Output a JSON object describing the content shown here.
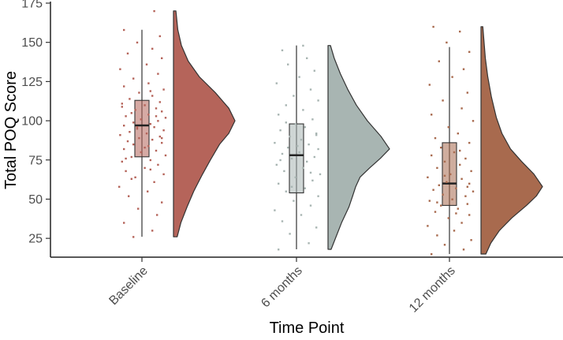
{
  "chart_data": {
    "type": "raincloud",
    "xlabel": "Time Point",
    "ylabel": "Total POQ Score",
    "ylim": [
      13,
      176
    ],
    "yticks": [
      "25",
      "50",
      "75",
      "100",
      "125",
      "150",
      "175"
    ],
    "categories": [
      "Baseline",
      "6 months",
      "12 months"
    ],
    "grid": false,
    "legend": "none",
    "groups": [
      {
        "name": "Baseline",
        "color": "#b5645a",
        "box": {
          "min": 26,
          "q1": 77,
          "median": 97,
          "q3": 113,
          "max": 158
        },
        "density_range": [
          26,
          170
        ],
        "density_peak": 100,
        "density": [
          [
            26,
            0.06
          ],
          [
            35,
            0.12
          ],
          [
            45,
            0.22
          ],
          [
            55,
            0.33
          ],
          [
            65,
            0.46
          ],
          [
            75,
            0.6
          ],
          [
            85,
            0.75
          ],
          [
            92,
            0.9
          ],
          [
            100,
            1.0
          ],
          [
            108,
            0.9
          ],
          [
            118,
            0.68
          ],
          [
            128,
            0.42
          ],
          [
            138,
            0.24
          ],
          [
            148,
            0.13
          ],
          [
            158,
            0.07
          ],
          [
            170,
            0.04
          ]
        ],
        "points": [
          [
            -0.1,
            26
          ],
          [
            0.1,
            30
          ],
          [
            -0.2,
            35
          ],
          [
            0.15,
            40
          ],
          [
            -0.05,
            44
          ],
          [
            0.2,
            48
          ],
          [
            -0.15,
            52
          ],
          [
            0.05,
            55
          ],
          [
            -0.25,
            58
          ],
          [
            0.12,
            61
          ],
          [
            -0.08,
            64
          ],
          [
            0.22,
            66
          ],
          [
            -0.18,
            68
          ],
          [
            0.02,
            70
          ],
          [
            0.16,
            72
          ],
          [
            -0.22,
            74
          ],
          [
            0.08,
            75
          ],
          [
            -0.12,
            77
          ],
          [
            0.24,
            78
          ],
          [
            -0.02,
            80
          ],
          [
            0.14,
            81
          ],
          [
            -0.2,
            82
          ],
          [
            0.06,
            84
          ],
          [
            -0.1,
            85
          ],
          [
            0.2,
            86
          ],
          [
            -0.16,
            87
          ],
          [
            0.1,
            88
          ],
          [
            -0.04,
            89
          ],
          [
            0.18,
            90
          ],
          [
            -0.24,
            91
          ],
          [
            0.04,
            92
          ],
          [
            -0.14,
            93
          ],
          [
            0.22,
            94
          ],
          [
            -0.06,
            95
          ],
          [
            0.12,
            96
          ],
          [
            -0.2,
            97
          ],
          [
            0.08,
            98
          ],
          [
            -0.1,
            99
          ],
          [
            0.16,
            100
          ],
          [
            -0.02,
            101
          ],
          [
            0.24,
            102
          ],
          [
            -0.18,
            103
          ],
          [
            0.06,
            104
          ],
          [
            -0.12,
            105
          ],
          [
            0.2,
            106
          ],
          [
            -0.08,
            107
          ],
          [
            0.14,
            108
          ],
          [
            -0.22,
            109
          ],
          [
            0.02,
            110
          ],
          [
            0.18,
            112
          ],
          [
            -0.14,
            114
          ],
          [
            0.1,
            116
          ],
          [
            -0.04,
            118
          ],
          [
            0.22,
            120
          ],
          [
            -0.2,
            122
          ],
          [
            0.06,
            124
          ],
          [
            -0.1,
            127
          ],
          [
            0.16,
            130
          ],
          [
            -0.24,
            133
          ],
          [
            0.04,
            136
          ],
          [
            0.2,
            140
          ],
          [
            -0.16,
            143
          ],
          [
            0.1,
            146
          ],
          [
            -0.06,
            150
          ],
          [
            0.18,
            154
          ],
          [
            -0.2,
            158
          ],
          [
            0.12,
            170
          ],
          [
            -0.12,
            63
          ],
          [
            0.08,
            69
          ],
          [
            -0.18,
            76
          ],
          [
            0.02,
            83
          ],
          [
            0.2,
            89
          ],
          [
            -0.06,
            96
          ],
          [
            0.14,
            103
          ],
          [
            -0.22,
            111
          ],
          [
            0.08,
            119
          ]
        ]
      },
      {
        "name": "6 months",
        "color": "#a8b5b2",
        "box": {
          "min": 18,
          "q1": 54,
          "median": 78,
          "q3": 98,
          "max": 148
        },
        "density_range": [
          18,
          148
        ],
        "density_peak": 82,
        "density": [
          [
            18,
            0.05
          ],
          [
            25,
            0.12
          ],
          [
            35,
            0.22
          ],
          [
            45,
            0.34
          ],
          [
            52,
            0.4
          ],
          [
            58,
            0.45
          ],
          [
            64,
            0.52
          ],
          [
            70,
            0.68
          ],
          [
            76,
            0.85
          ],
          [
            82,
            1.0
          ],
          [
            90,
            0.86
          ],
          [
            100,
            0.64
          ],
          [
            110,
            0.46
          ],
          [
            120,
            0.32
          ],
          [
            130,
            0.2
          ],
          [
            140,
            0.1
          ],
          [
            148,
            0.04
          ]
        ],
        "points": [
          [
            -0.2,
            18
          ],
          [
            0.12,
            22
          ],
          [
            -0.08,
            28
          ],
          [
            0.2,
            32
          ],
          [
            -0.16,
            36
          ],
          [
            0.04,
            40
          ],
          [
            -0.24,
            43
          ],
          [
            0.14,
            46
          ],
          [
            -0.04,
            49
          ],
          [
            0.22,
            52
          ],
          [
            -0.12,
            55
          ],
          [
            0.08,
            57
          ],
          [
            -0.2,
            60
          ],
          [
            0.16,
            62
          ],
          [
            -0.02,
            64
          ],
          [
            0.24,
            66
          ],
          [
            -0.14,
            68
          ],
          [
            0.06,
            70
          ],
          [
            -0.22,
            72
          ],
          [
            0.1,
            74
          ],
          [
            -0.06,
            76
          ],
          [
            0.18,
            77
          ],
          [
            -0.16,
            79
          ],
          [
            0.02,
            80
          ],
          [
            0.22,
            82
          ],
          [
            -0.1,
            83
          ],
          [
            0.12,
            85
          ],
          [
            -0.24,
            86
          ],
          [
            0.04,
            88
          ],
          [
            -0.08,
            90
          ],
          [
            0.2,
            92
          ],
          [
            -0.18,
            94
          ],
          [
            0.08,
            96
          ],
          [
            -0.02,
            98
          ],
          [
            0.16,
            101
          ],
          [
            -0.2,
            104
          ],
          [
            0.06,
            107
          ],
          [
            -0.12,
            110
          ],
          [
            0.22,
            113
          ],
          [
            -0.04,
            116
          ],
          [
            0.14,
            120
          ],
          [
            -0.22,
            124
          ],
          [
            0.02,
            128
          ],
          [
            0.18,
            132
          ],
          [
            -0.1,
            136
          ],
          [
            0.1,
            140
          ],
          [
            -0.16,
            145
          ],
          [
            0.06,
            148
          ],
          [
            -0.06,
            58
          ],
          [
            0.14,
            67
          ],
          [
            -0.18,
            75
          ],
          [
            0.0,
            84
          ],
          [
            0.2,
            91
          ],
          [
            -0.12,
            99
          ]
        ]
      },
      {
        "name": "12 months",
        "color": "#a86a4e",
        "box": {
          "min": 15,
          "q1": 46,
          "median": 60,
          "q3": 86,
          "max": 147
        },
        "density_range": [
          15,
          160
        ],
        "density_peak": 58,
        "density": [
          [
            15,
            0.08
          ],
          [
            22,
            0.16
          ],
          [
            30,
            0.3
          ],
          [
            38,
            0.5
          ],
          [
            46,
            0.74
          ],
          [
            52,
            0.9
          ],
          [
            58,
            1.0
          ],
          [
            66,
            0.86
          ],
          [
            74,
            0.66
          ],
          [
            82,
            0.48
          ],
          [
            92,
            0.34
          ],
          [
            102,
            0.25
          ],
          [
            115,
            0.17
          ],
          [
            128,
            0.11
          ],
          [
            140,
            0.07
          ],
          [
            150,
            0.05
          ],
          [
            160,
            0.03
          ]
        ],
        "points": [
          [
            -0.2,
            15
          ],
          [
            0.14,
            18
          ],
          [
            -0.06,
            21
          ],
          [
            0.22,
            24
          ],
          [
            -0.14,
            27
          ],
          [
            0.04,
            30
          ],
          [
            -0.24,
            33
          ],
          [
            0.12,
            35
          ],
          [
            -0.02,
            38
          ],
          [
            0.2,
            40
          ],
          [
            -0.16,
            42
          ],
          [
            0.08,
            44
          ],
          [
            -0.1,
            46
          ],
          [
            0.18,
            47
          ],
          [
            -0.22,
            49
          ],
          [
            0.02,
            50
          ],
          [
            0.16,
            52
          ],
          [
            -0.08,
            53
          ],
          [
            0.24,
            55
          ],
          [
            -0.18,
            56
          ],
          [
            0.06,
            57
          ],
          [
            -0.12,
            59
          ],
          [
            0.2,
            60
          ],
          [
            -0.04,
            61
          ],
          [
            0.12,
            63
          ],
          [
            -0.24,
            64
          ],
          [
            0.0,
            66
          ],
          [
            0.22,
            68
          ],
          [
            -0.14,
            70
          ],
          [
            0.1,
            72
          ],
          [
            -0.06,
            74
          ],
          [
            0.16,
            76
          ],
          [
            -0.2,
            78
          ],
          [
            0.04,
            80
          ],
          [
            -0.1,
            83
          ],
          [
            0.2,
            86
          ],
          [
            -0.16,
            89
          ],
          [
            0.08,
            92
          ],
          [
            -0.02,
            96
          ],
          [
            0.24,
            100
          ],
          [
            -0.2,
            104
          ],
          [
            0.12,
            108
          ],
          [
            -0.08,
            113
          ],
          [
            0.18,
            118
          ],
          [
            -0.22,
            123
          ],
          [
            0.02,
            128
          ],
          [
            0.14,
            133
          ],
          [
            -0.12,
            138
          ],
          [
            0.2,
            144
          ],
          [
            -0.04,
            150
          ],
          [
            0.1,
            157
          ],
          [
            -0.18,
            160
          ],
          [
            0.06,
            41
          ],
          [
            -0.14,
            48
          ],
          [
            0.18,
            58
          ],
          [
            -0.06,
            65
          ],
          [
            0.1,
            81
          ]
        ]
      }
    ]
  }
}
